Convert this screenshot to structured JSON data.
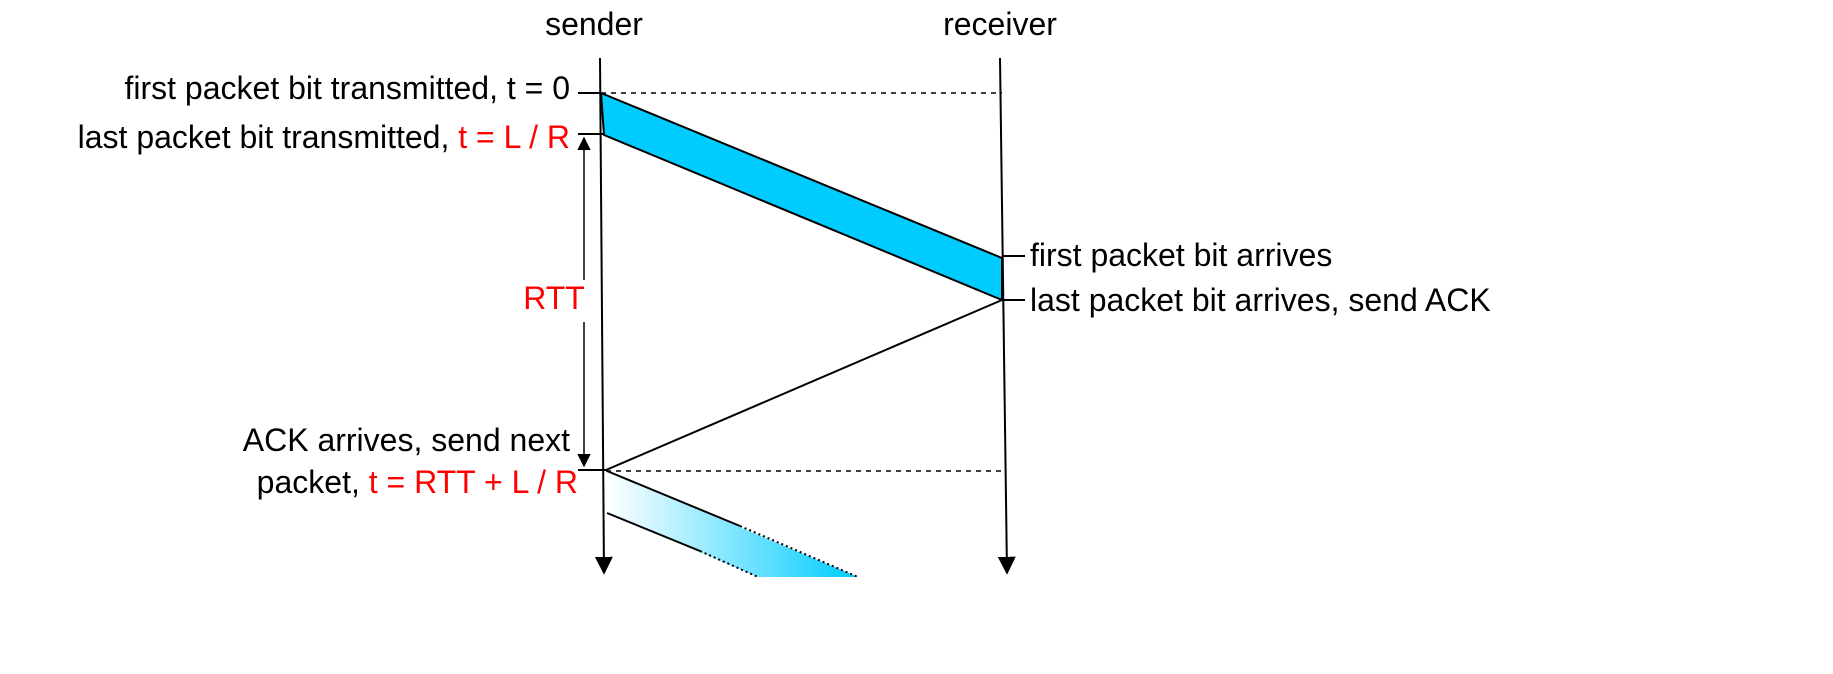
{
  "columns": {
    "sender": "sender",
    "receiver": "receiver"
  },
  "left_labels": {
    "first_bit_transmitted": "first packet bit transmitted, t = 0",
    "last_bit_transmitted_prefix": "last packet bit transmitted, ",
    "last_bit_transmitted_time": "t = L / R",
    "rtt": "RTT",
    "ack_arrives_line1": "ACK arrives, send next",
    "ack_arrives_line2_prefix": "packet, ",
    "ack_arrives_line2_time": "t = RTT + L / R"
  },
  "right_labels": {
    "first_bit_arrives": "first packet bit arrives",
    "last_bit_arrives": "last packet bit arrives, send ACK"
  },
  "colors": {
    "packet": "#00ccff",
    "highlight": "#ff0000",
    "line": "#000000"
  }
}
